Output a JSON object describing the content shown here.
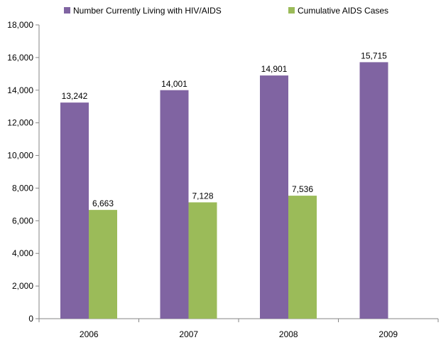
{
  "chart_data": {
    "type": "bar",
    "title": "",
    "xlabel": "",
    "ylabel": "",
    "categories": [
      "2006",
      "2007",
      "2008",
      "2009"
    ],
    "ylim": [
      0,
      18000
    ],
    "ytick_step": 2000,
    "yticks": [
      "0",
      "2,000",
      "4,000",
      "6,000",
      "8,000",
      "10,000",
      "12,000",
      "14,000",
      "16,000",
      "18,000"
    ],
    "grid": false,
    "legend_position": "top",
    "series": [
      {
        "name": "Number Currently Living with HIV/AIDS",
        "color": "#8064a2",
        "values": [
          13242,
          14001,
          14901,
          15715
        ],
        "labels": [
          "13,242",
          "14,001",
          "14,901",
          "15,715"
        ]
      },
      {
        "name": "Cumulative AIDS Cases",
        "color": "#9bbb59",
        "values": [
          6663,
          7128,
          7536,
          null
        ],
        "labels": [
          "6,663",
          "7,128",
          "7,536",
          null
        ]
      }
    ]
  }
}
